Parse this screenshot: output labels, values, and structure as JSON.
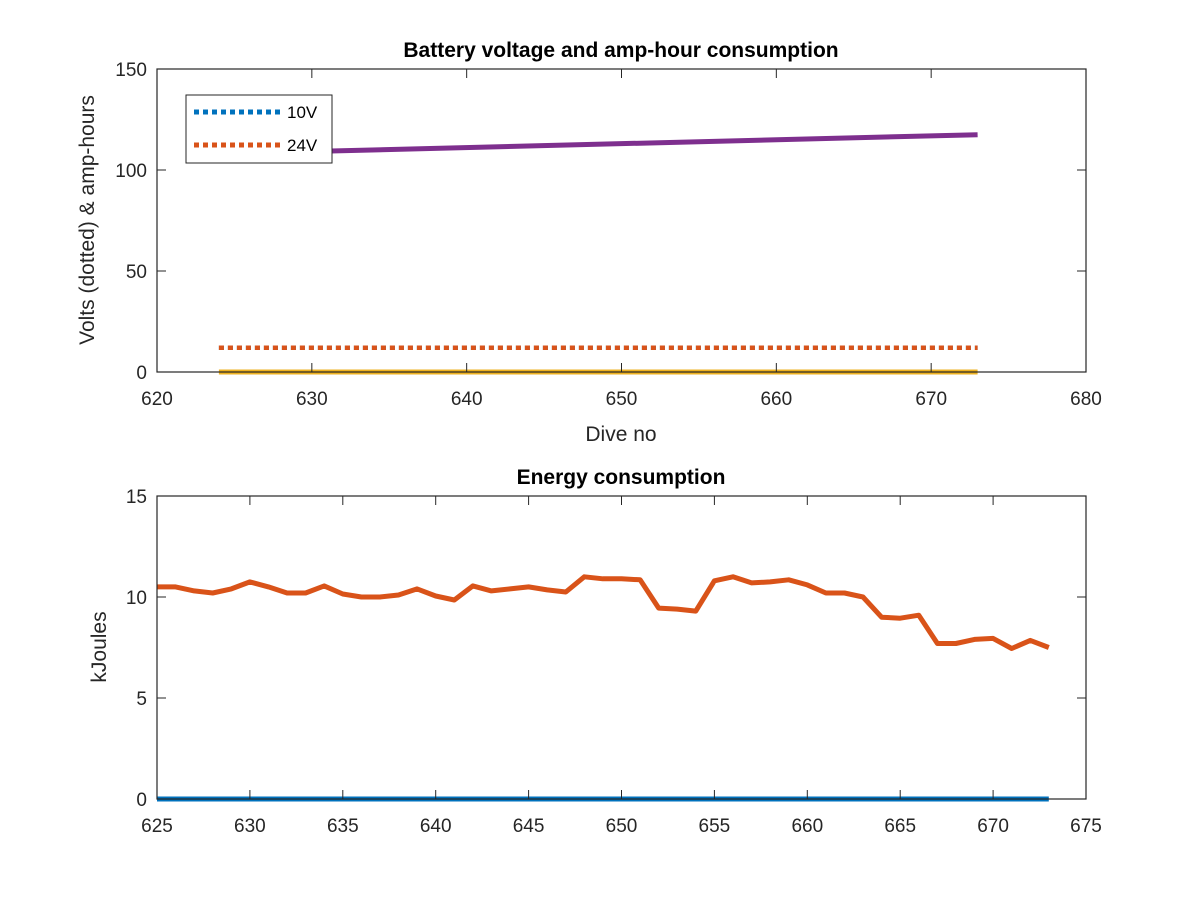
{
  "chart_data": [
    {
      "type": "line",
      "title": "Battery voltage and amp-hour consumption",
      "xlabel": "Dive no",
      "ylabel": "Volts (dotted) & amp-hours",
      "xlim": [
        620,
        680
      ],
      "ylim": [
        0,
        150
      ],
      "xticks": [
        620,
        630,
        640,
        650,
        660,
        670,
        680
      ],
      "yticks": [
        0,
        50,
        100,
        150
      ],
      "legend_position": "top-left",
      "series": [
        {
          "name": "10V",
          "style": "dotted",
          "color": "#0072BD",
          "x": [
            624,
            673
          ],
          "y": [
            12,
            12
          ]
        },
        {
          "name": "24V",
          "style": "dotted",
          "color": "#D95319",
          "x": [
            624,
            673
          ],
          "y": [
            12,
            12
          ]
        },
        {
          "style": "solid",
          "color": "#7E2F8E",
          "x": [
            624,
            673
          ],
          "y": [
            108,
            117.5
          ]
        },
        {
          "style": "solid",
          "color": "#EDB120",
          "x": [
            624,
            673
          ],
          "y": [
            0,
            0
          ]
        }
      ]
    },
    {
      "type": "line",
      "title": "Energy consumption",
      "xlabel": "",
      "ylabel": "kJoules",
      "xlim": [
        625,
        675
      ],
      "ylim": [
        0,
        15
      ],
      "xticks": [
        625,
        630,
        635,
        640,
        645,
        650,
        655,
        660,
        665,
        670,
        675
      ],
      "yticks": [
        0,
        5,
        10,
        15
      ],
      "series": [
        {
          "style": "solid",
          "color": "#D95319",
          "x": [
            625,
            626,
            627,
            628,
            629,
            630,
            631,
            632,
            633,
            634,
            635,
            636,
            637,
            638,
            639,
            640,
            641,
            642,
            643,
            644,
            645,
            646,
            647,
            648,
            649,
            650,
            651,
            652,
            653,
            654,
            655,
            656,
            657,
            658,
            659,
            660,
            661,
            662,
            663,
            664,
            665,
            666,
            667,
            668,
            669,
            670,
            671,
            672,
            673
          ],
          "y": [
            10.5,
            10.5,
            10.3,
            10.2,
            10.4,
            10.75,
            10.5,
            10.2,
            10.2,
            10.55,
            10.15,
            10.0,
            10.0,
            10.1,
            10.4,
            10.05,
            9.85,
            10.55,
            10.3,
            10.4,
            10.5,
            10.35,
            10.25,
            11.0,
            10.9,
            10.9,
            10.85,
            9.45,
            9.4,
            9.3,
            10.8,
            11.0,
            10.7,
            10.75,
            10.85,
            10.6,
            10.2,
            10.2,
            10.0,
            9.0,
            8.95,
            9.1,
            7.7,
            7.7,
            7.9,
            7.95,
            7.45,
            7.85,
            7.5
          ]
        },
        {
          "style": "solid",
          "color": "#0072BD",
          "x": [
            625,
            673
          ],
          "y": [
            0,
            0
          ]
        }
      ]
    }
  ]
}
